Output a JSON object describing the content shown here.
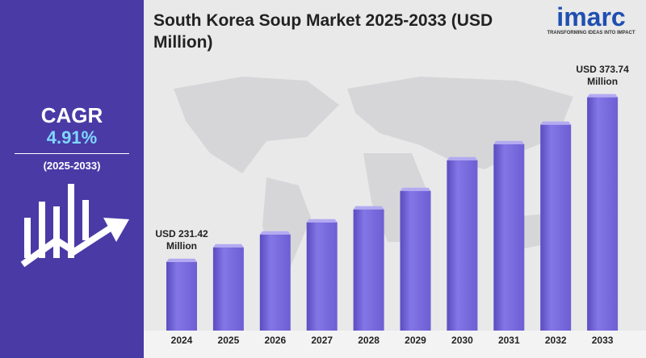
{
  "panel": {
    "cagr_label": "CAGR",
    "cagr_value": "4.91%",
    "period": "(2025-2033)"
  },
  "logo": {
    "name": "imarc",
    "tagline": "TRANSFORMING IDEAS INTO IMPACT"
  },
  "chart_data": {
    "type": "bar",
    "title": "South Korea Soup Market 2025-2033 (USD Million)",
    "categories": [
      "2024",
      "2025",
      "2026",
      "2027",
      "2028",
      "2029",
      "2030",
      "2031",
      "2032",
      "2033"
    ],
    "values": [
      231.42,
      244.0,
      255.1,
      265.6,
      276.8,
      292.8,
      319.3,
      333.2,
      350.0,
      373.74
    ],
    "value_labels": [
      "USD 231.42 Million",
      null,
      null,
      null,
      null,
      null,
      null,
      null,
      null,
      "USD 373.74 Million"
    ],
    "color": "#7b6ddb",
    "ylim": [
      172,
      416
    ]
  }
}
